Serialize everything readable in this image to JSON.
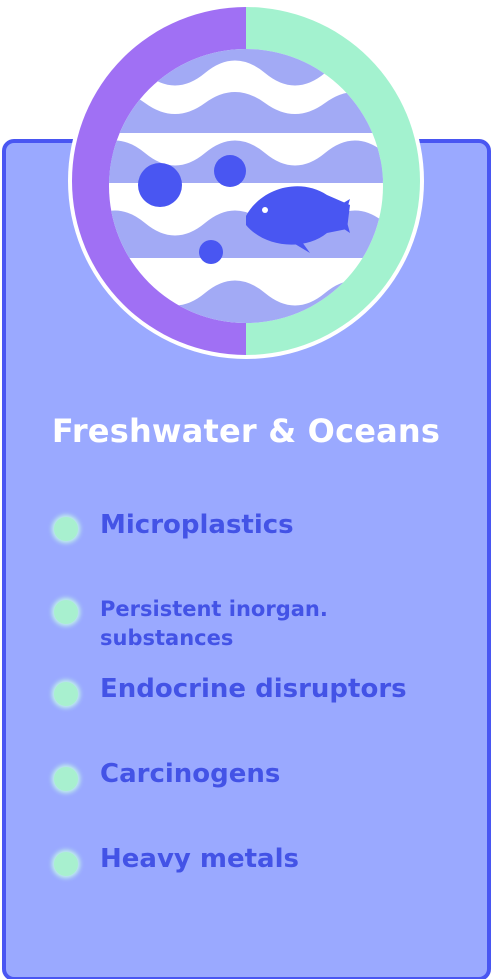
{
  "card": {
    "title": "Freshwater & Oceans",
    "items": [
      {
        "label": "Microplastics"
      },
      {
        "label_line1": "Persistent inorgan.",
        "label_line2": "substances"
      },
      {
        "label": "Endocrine disruptors"
      },
      {
        "label": "Carcinogens"
      },
      {
        "label": "Heavy metals"
      }
    ]
  },
  "colors": {
    "card_fill": "#9aa9ff",
    "card_border": "#4956f2",
    "emblem_left": "#a070f4",
    "emblem_right": "#a3f2cf",
    "accent_blue": "#4956f2",
    "bullet": "#a8f0cf",
    "title_text": "#ffffff",
    "item_text": "#4353e6"
  },
  "icons": [
    "water-waves-icon",
    "bubble-icon",
    "fish-icon",
    "bullet-dot-icon"
  ]
}
